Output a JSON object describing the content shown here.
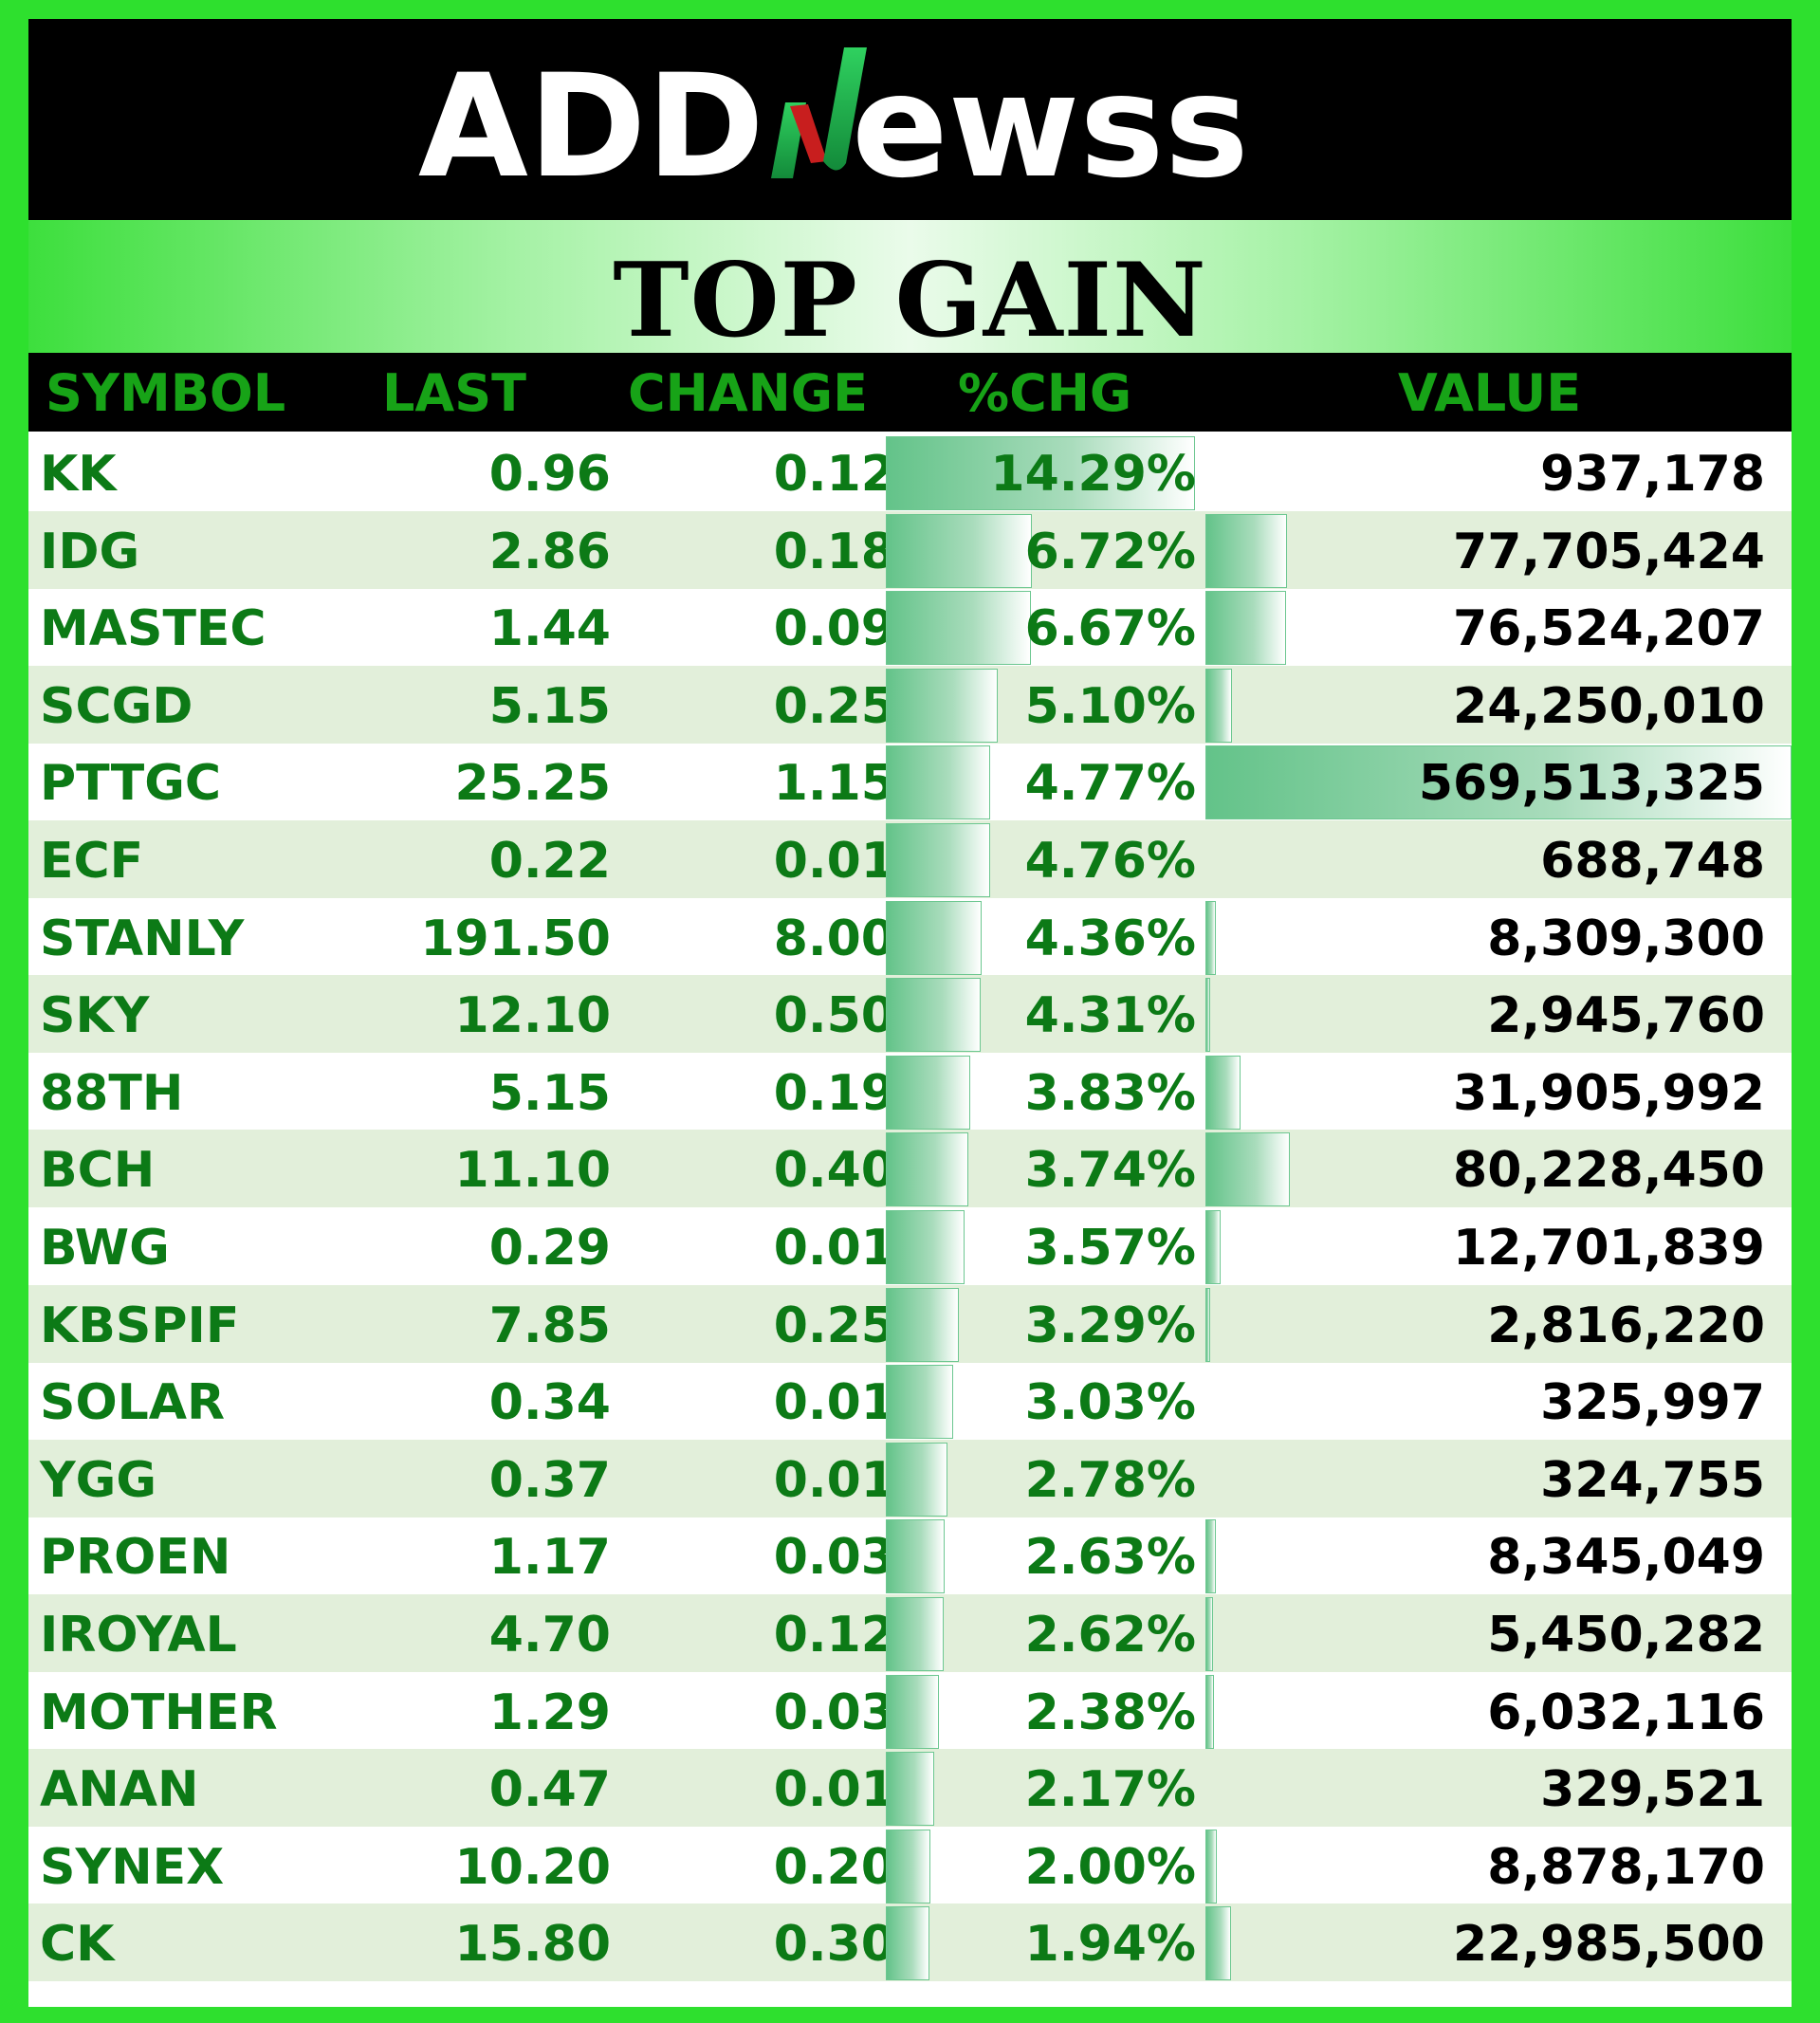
{
  "logo": {
    "text_left": "ADD",
    "text_right": "ewss",
    "mark_colors": {
      "green": "#22c25a",
      "red": "#c81e1e"
    }
  },
  "title": "TOP GAIN",
  "header": {
    "symbol": "SYMBOL",
    "last": "LAST",
    "change": "CHANGE",
    "pct": "%CHG",
    "value": "VALUE"
  },
  "colors": {
    "border": "#2ee02e",
    "header_text": "#17a317",
    "row_text": "#0c7a16",
    "alt_row": "#e2efda"
  },
  "rows": [
    {
      "symbol": "KK",
      "last": "0.96",
      "change": "0.12",
      "pct": "14.29%",
      "value": "937,178"
    },
    {
      "symbol": "IDG",
      "last": "2.86",
      "change": "0.18",
      "pct": "6.72%",
      "value": "77,705,424"
    },
    {
      "symbol": "MASTEC",
      "last": "1.44",
      "change": "0.09",
      "pct": "6.67%",
      "value": "76,524,207"
    },
    {
      "symbol": "SCGD",
      "last": "5.15",
      "change": "0.25",
      "pct": "5.10%",
      "value": "24,250,010"
    },
    {
      "symbol": "PTTGC",
      "last": "25.25",
      "change": "1.15",
      "pct": "4.77%",
      "value": "569,513,325"
    },
    {
      "symbol": "ECF",
      "last": "0.22",
      "change": "0.01",
      "pct": "4.76%",
      "value": "688,748"
    },
    {
      "symbol": "STANLY",
      "last": "191.50",
      "change": "8.00",
      "pct": "4.36%",
      "value": "8,309,300"
    },
    {
      "symbol": "SKY",
      "last": "12.10",
      "change": "0.50",
      "pct": "4.31%",
      "value": "2,945,760"
    },
    {
      "symbol": "88TH",
      "last": "5.15",
      "change": "0.19",
      "pct": "3.83%",
      "value": "31,905,992"
    },
    {
      "symbol": "BCH",
      "last": "11.10",
      "change": "0.40",
      "pct": "3.74%",
      "value": "80,228,450"
    },
    {
      "symbol": "BWG",
      "last": "0.29",
      "change": "0.01",
      "pct": "3.57%",
      "value": "12,701,839"
    },
    {
      "symbol": "KBSPIF",
      "last": "7.85",
      "change": "0.25",
      "pct": "3.29%",
      "value": "2,816,220"
    },
    {
      "symbol": "SOLAR",
      "last": "0.34",
      "change": "0.01",
      "pct": "3.03%",
      "value": "325,997"
    },
    {
      "symbol": "YGG",
      "last": "0.37",
      "change": "0.01",
      "pct": "2.78%",
      "value": "324,755"
    },
    {
      "symbol": "PROEN",
      "last": "1.17",
      "change": "0.03",
      "pct": "2.63%",
      "value": "8,345,049"
    },
    {
      "symbol": "IROYAL",
      "last": "4.70",
      "change": "0.12",
      "pct": "2.62%",
      "value": "5,450,282"
    },
    {
      "symbol": "MOTHER",
      "last": "1.29",
      "change": "0.03",
      "pct": "2.38%",
      "value": "6,032,116"
    },
    {
      "symbol": "ANAN",
      "last": "0.47",
      "change": "0.01",
      "pct": "2.17%",
      "value": "329,521"
    },
    {
      "symbol": "SYNEX",
      "last": "10.20",
      "change": "0.20",
      "pct": "2.00%",
      "value": "8,878,170"
    },
    {
      "symbol": "CK",
      "last": "15.80",
      "change": "0.30",
      "pct": "1.94%",
      "value": "22,985,500"
    }
  ]
}
